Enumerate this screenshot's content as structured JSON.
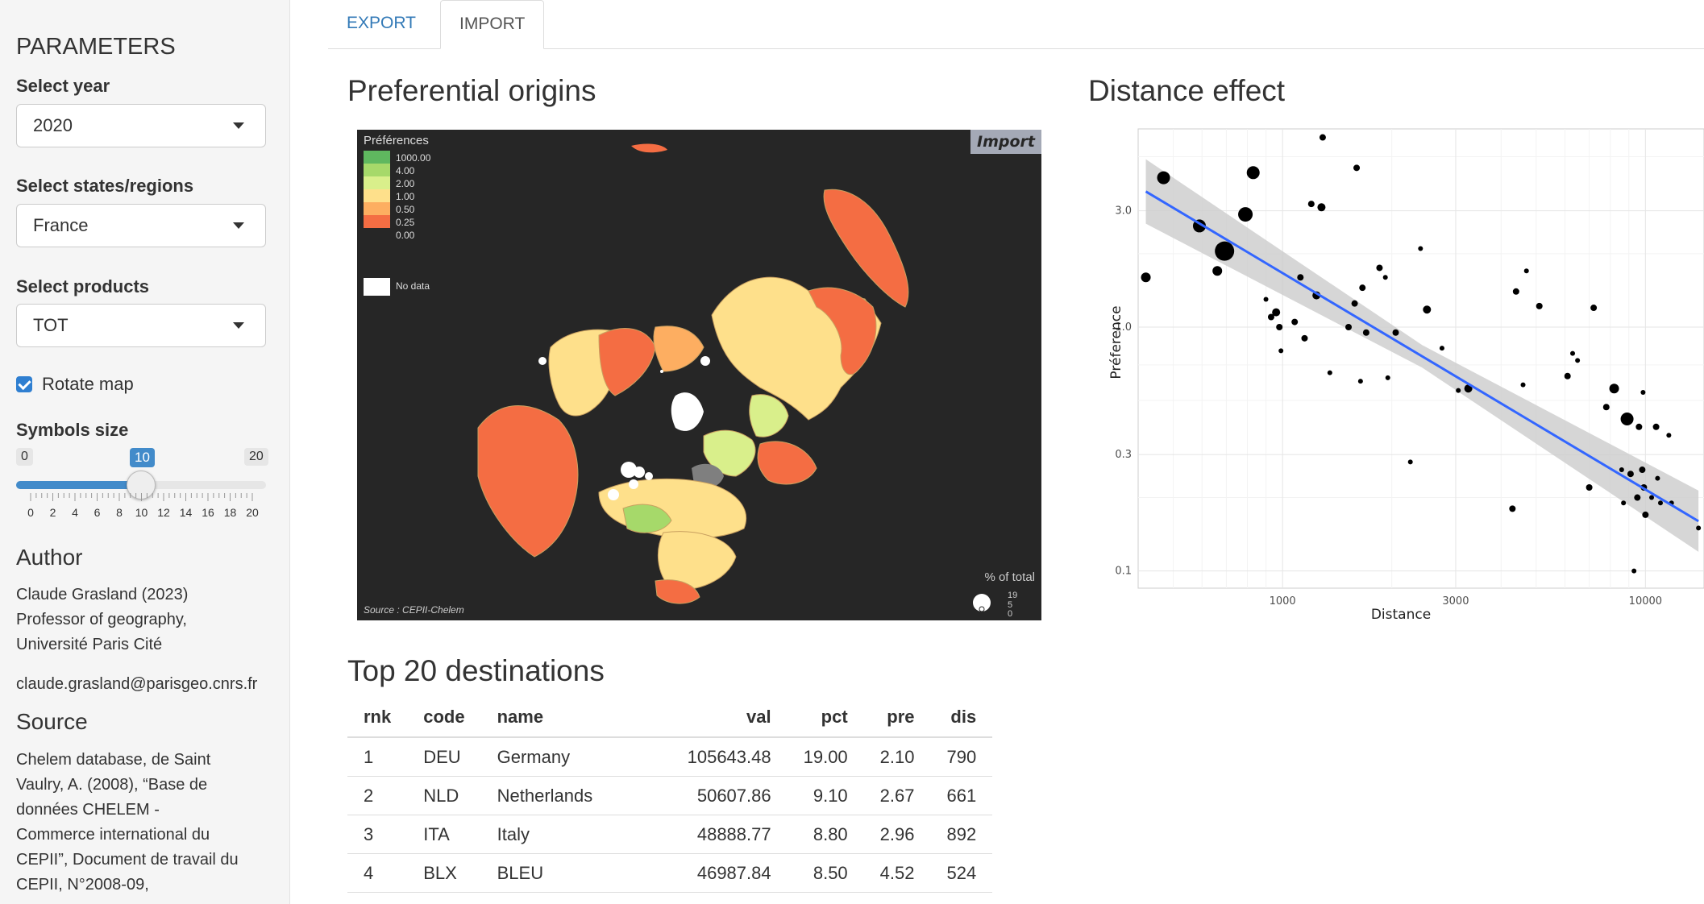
{
  "sidebar": {
    "title": "PARAMETERS",
    "year": {
      "label": "Select year",
      "value": "2020"
    },
    "region": {
      "label": "Select states/regions",
      "value": "France"
    },
    "product": {
      "label": "Select products",
      "value": "TOT"
    },
    "rotate": {
      "label": "Rotate map",
      "checked": true
    },
    "symbols": {
      "label": "Symbols size",
      "min": "0",
      "max": "20",
      "value": "10",
      "ticks": [
        "0",
        "2",
        "4",
        "6",
        "8",
        "10",
        "12",
        "14",
        "16",
        "18",
        "20"
      ]
    },
    "author": {
      "heading": "Author",
      "lines": [
        "Claude Grasland (2023)",
        "Professor of geography,",
        "Université Paris Cité"
      ],
      "email": "claude.grasland@parisgeo.cnrs.fr"
    },
    "source": {
      "heading": "Source",
      "lines": [
        "Chelem database, de Saint",
        "Vaulry, A. (2008), “Base de",
        "données CHELEM -",
        "Commerce international du",
        "CEPII”, Document de travail du",
        "CEPII, N°2008-09,"
      ]
    }
  },
  "tabs": [
    {
      "label": "EXPORT"
    },
    {
      "label": "IMPORT"
    }
  ],
  "map": {
    "title": "Preferential origins",
    "badge": "Import",
    "legend_title": "Préférences",
    "legend": [
      {
        "label": "1000.00",
        "color": "#5fb85f"
      },
      {
        "label": "4.00",
        "color": "#a6d96a"
      },
      {
        "label": "2.00",
        "color": "#d9ef8b"
      },
      {
        "label": "1.00",
        "color": "#fee08b"
      },
      {
        "label": "0.50",
        "color": "#fdae61"
      },
      {
        "label": "0.25",
        "color": "#f46d43"
      },
      {
        "label": "0.00",
        "color": ""
      }
    ],
    "nodata": "No data",
    "source": "Source : CEPII-Chelem",
    "pct_title": "% of total",
    "pct_values": [
      "19",
      "5",
      "0"
    ]
  },
  "scatter": {
    "title": "Distance effect",
    "chart_data": {
      "type": "scatter",
      "xlabel": "Distance",
      "ylabel": "Préference",
      "x_scale": "log",
      "y_scale": "log",
      "x_ticks": [
        1000,
        3000,
        10000
      ],
      "y_ticks": [
        0.1,
        0.3,
        1.0,
        3.0
      ],
      "x_tick_labels": [
        "1000",
        "3000",
        "10000"
      ],
      "y_tick_labels": [
        "0.1",
        "0.3",
        "1.0",
        "3.0"
      ],
      "xlim": [
        400,
        14500
      ],
      "ylim": [
        0.085,
        6.5
      ],
      "grid": true,
      "trend": {
        "x": [
          420,
          14000
        ],
        "y": [
          3.6,
          0.16
        ],
        "color": "#3366ff",
        "band": "#cccccc"
      },
      "points": [
        {
          "x": 420,
          "y": 1.6,
          "s": 6
        },
        {
          "x": 470,
          "y": 4.1,
          "s": 8
        },
        {
          "x": 590,
          "y": 2.6,
          "s": 8
        },
        {
          "x": 661,
          "y": 1.7,
          "s": 6
        },
        {
          "x": 692,
          "y": 2.05,
          "s": 12
        },
        {
          "x": 790,
          "y": 2.9,
          "s": 9
        },
        {
          "x": 830,
          "y": 4.3,
          "s": 8
        },
        {
          "x": 900,
          "y": 1.3,
          "s": 3
        },
        {
          "x": 930,
          "y": 1.1,
          "s": 4
        },
        {
          "x": 960,
          "y": 1.15,
          "s": 5
        },
        {
          "x": 980,
          "y": 1.0,
          "s": 4
        },
        {
          "x": 990,
          "y": 0.8,
          "s": 3
        },
        {
          "x": 1080,
          "y": 1.05,
          "s": 4
        },
        {
          "x": 1120,
          "y": 1.6,
          "s": 4
        },
        {
          "x": 1150,
          "y": 0.9,
          "s": 4
        },
        {
          "x": 1200,
          "y": 3.2,
          "s": 4
        },
        {
          "x": 1240,
          "y": 1.35,
          "s": 5
        },
        {
          "x": 1280,
          "y": 3.1,
          "s": 5
        },
        {
          "x": 1290,
          "y": 6.0,
          "s": 4
        },
        {
          "x": 1350,
          "y": 0.65,
          "s": 3
        },
        {
          "x": 1520,
          "y": 1.0,
          "s": 4
        },
        {
          "x": 1580,
          "y": 1.25,
          "s": 4
        },
        {
          "x": 1600,
          "y": 4.5,
          "s": 4
        },
        {
          "x": 1640,
          "y": 0.6,
          "s": 3
        },
        {
          "x": 1660,
          "y": 1.45,
          "s": 4
        },
        {
          "x": 1700,
          "y": 0.95,
          "s": 4
        },
        {
          "x": 1850,
          "y": 1.75,
          "s": 4
        },
        {
          "x": 1920,
          "y": 1.6,
          "s": 3
        },
        {
          "x": 1950,
          "y": 0.62,
          "s": 3
        },
        {
          "x": 2050,
          "y": 0.95,
          "s": 4
        },
        {
          "x": 2250,
          "y": 0.28,
          "s": 3
        },
        {
          "x": 2400,
          "y": 2.1,
          "s": 3
        },
        {
          "x": 2500,
          "y": 1.18,
          "s": 5
        },
        {
          "x": 2750,
          "y": 0.82,
          "s": 3
        },
        {
          "x": 3050,
          "y": 0.55,
          "s": 3
        },
        {
          "x": 3250,
          "y": 0.56,
          "s": 5
        },
        {
          "x": 4300,
          "y": 0.18,
          "s": 4
        },
        {
          "x": 4400,
          "y": 1.4,
          "s": 4
        },
        {
          "x": 4600,
          "y": 0.58,
          "s": 3
        },
        {
          "x": 4700,
          "y": 1.7,
          "s": 3
        },
        {
          "x": 5100,
          "y": 1.22,
          "s": 4
        },
        {
          "x": 6100,
          "y": 0.63,
          "s": 4
        },
        {
          "x": 6300,
          "y": 0.78,
          "s": 3
        },
        {
          "x": 6500,
          "y": 0.73,
          "s": 3
        },
        {
          "x": 7000,
          "y": 0.22,
          "s": 4
        },
        {
          "x": 7200,
          "y": 1.2,
          "s": 4
        },
        {
          "x": 7800,
          "y": 0.47,
          "s": 4
        },
        {
          "x": 8200,
          "y": 0.56,
          "s": 6
        },
        {
          "x": 8600,
          "y": 0.26,
          "s": 3
        },
        {
          "x": 8700,
          "y": 0.19,
          "s": 3
        },
        {
          "x": 8900,
          "y": 0.42,
          "s": 8
        },
        {
          "x": 9100,
          "y": 0.25,
          "s": 4
        },
        {
          "x": 9300,
          "y": 0.1,
          "s": 3
        },
        {
          "x": 9500,
          "y": 0.2,
          "s": 4
        },
        {
          "x": 9600,
          "y": 0.39,
          "s": 4
        },
        {
          "x": 9800,
          "y": 0.26,
          "s": 4
        },
        {
          "x": 9850,
          "y": 0.54,
          "s": 3
        },
        {
          "x": 9900,
          "y": 0.22,
          "s": 4
        },
        {
          "x": 10000,
          "y": 0.17,
          "s": 4
        },
        {
          "x": 10400,
          "y": 0.2,
          "s": 3
        },
        {
          "x": 10700,
          "y": 0.39,
          "s": 4
        },
        {
          "x": 10800,
          "y": 0.24,
          "s": 3
        },
        {
          "x": 11000,
          "y": 0.19,
          "s": 3
        },
        {
          "x": 11600,
          "y": 0.36,
          "s": 3
        },
        {
          "x": 11800,
          "y": 0.19,
          "s": 3
        },
        {
          "x": 14000,
          "y": 0.15,
          "s": 3
        }
      ]
    }
  },
  "table": {
    "title": "Top 20 destinations",
    "columns": [
      "rnk",
      "code",
      "name",
      "val",
      "pct",
      "pre",
      "dis"
    ],
    "rows": [
      [
        "1",
        "DEU",
        "Germany",
        "105643.48",
        "19.00",
        "2.10",
        "790"
      ],
      [
        "2",
        "NLD",
        "Netherlands",
        "50607.86",
        "9.10",
        "2.67",
        "661"
      ],
      [
        "3",
        "ITA",
        "Italy",
        "48888.77",
        "8.80",
        "2.96",
        "892"
      ],
      [
        "4",
        "BLX",
        "BLEU",
        "46987.84",
        "8.50",
        "4.52",
        "524"
      ]
    ]
  }
}
